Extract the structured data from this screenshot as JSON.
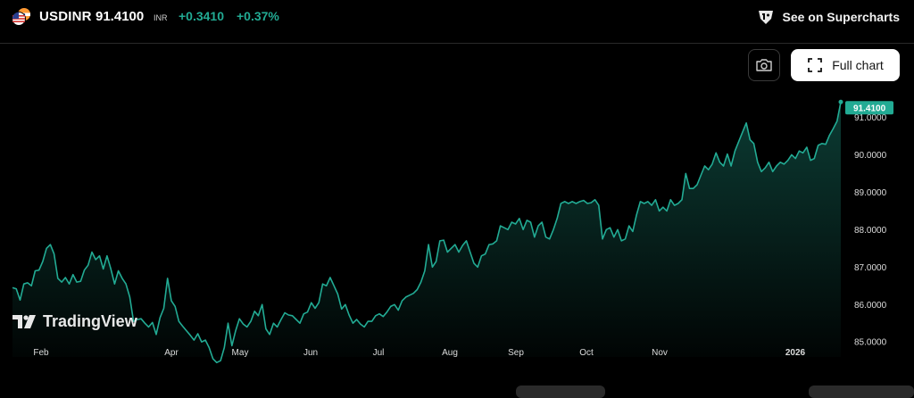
{
  "header": {
    "symbol": "USDINR",
    "price": "91.4100",
    "unit": "INR",
    "change": "+0.3410",
    "change_pct": "+0.37%",
    "supercharts_label": "See on Supercharts"
  },
  "toolbar": {
    "full_chart_label": "Full chart"
  },
  "branding": {
    "logo_text": "TradingView"
  },
  "colors": {
    "accent": "#22ab94",
    "background": "#000000",
    "text": "#ffffff"
  },
  "chart_data": {
    "type": "area",
    "symbol": "USDINR",
    "last_value_label": "91.4100",
    "x_ticks": [
      "Feb",
      "Apr",
      "May",
      "Jun",
      "Jul",
      "Aug",
      "Sep",
      "Oct",
      "Nov",
      "2026"
    ],
    "y_ticks": [
      "85.0000",
      "86.0000",
      "87.0000",
      "88.0000",
      "89.0000",
      "90.0000",
      "91.0000"
    ],
    "ylim": [
      84.6,
      91.75
    ],
    "grid": false,
    "series": [
      {
        "values": [
          86.45,
          86.42,
          86.12,
          86.55,
          86.58,
          86.5,
          86.9,
          86.92,
          87.15,
          87.5,
          87.6,
          87.35,
          86.7,
          86.6,
          86.72,
          86.55,
          86.8,
          86.6,
          86.62,
          86.92,
          87.05,
          87.4,
          87.2,
          87.3,
          86.95,
          87.3,
          86.95,
          86.55,
          86.9,
          86.7,
          86.55,
          86.2,
          85.55,
          85.6,
          85.62,
          85.5,
          85.4,
          85.52,
          85.2,
          85.65,
          85.9,
          86.7,
          86.1,
          85.95,
          85.55,
          85.42,
          85.3,
          85.18,
          85.05,
          85.22,
          85.0,
          85.05,
          84.85,
          84.55,
          84.45,
          84.5,
          84.85,
          85.5,
          84.9,
          85.3,
          85.62,
          85.48,
          85.4,
          85.55,
          85.82,
          85.7,
          86.0,
          85.35,
          85.2,
          85.5,
          85.4,
          85.6,
          85.78,
          85.72,
          85.7,
          85.6,
          85.5,
          85.75,
          85.8,
          86.05,
          85.9,
          86.05,
          86.55,
          86.5,
          86.72,
          86.5,
          86.28,
          85.88,
          86.0,
          85.72,
          85.5,
          85.6,
          85.48,
          85.4,
          85.55,
          85.55,
          85.7,
          85.75,
          85.68,
          85.8,
          85.95,
          86.0,
          85.85,
          86.1,
          86.2,
          86.25,
          86.3,
          86.4,
          86.6,
          86.9,
          87.6,
          87.0,
          87.15,
          87.7,
          87.72,
          87.4,
          87.5,
          87.6,
          87.4,
          87.58,
          87.7,
          87.4,
          87.1,
          87.0,
          87.3,
          87.35,
          87.6,
          87.62,
          87.7,
          88.1,
          88.05,
          88.0,
          88.2,
          88.15,
          88.3,
          88.0,
          88.25,
          88.2,
          87.8,
          88.1,
          88.2,
          87.8,
          87.75,
          88.0,
          88.3,
          88.7,
          88.75,
          88.7,
          88.75,
          88.7,
          88.75,
          88.78,
          88.7,
          88.72,
          88.8,
          88.65,
          87.75,
          88.0,
          88.05,
          87.8,
          88.0,
          87.7,
          87.75,
          88.1,
          87.95,
          88.4,
          88.75,
          88.7,
          88.75,
          88.65,
          88.8,
          88.5,
          88.6,
          88.5,
          88.8,
          88.65,
          88.7,
          88.8,
          89.5,
          89.1,
          89.1,
          89.2,
          89.45,
          89.7,
          89.6,
          89.75,
          90.05,
          89.8,
          89.7,
          90.02,
          89.7,
          90.1,
          90.35,
          90.6,
          90.85,
          90.4,
          90.3,
          89.8,
          89.55,
          89.65,
          89.8,
          89.55,
          89.7,
          89.8,
          89.75,
          89.85,
          90.0,
          89.9,
          90.1,
          90.05,
          90.2,
          89.85,
          89.9,
          90.25,
          90.3,
          90.28,
          90.52,
          90.7,
          90.9,
          91.41
        ]
      }
    ]
  }
}
